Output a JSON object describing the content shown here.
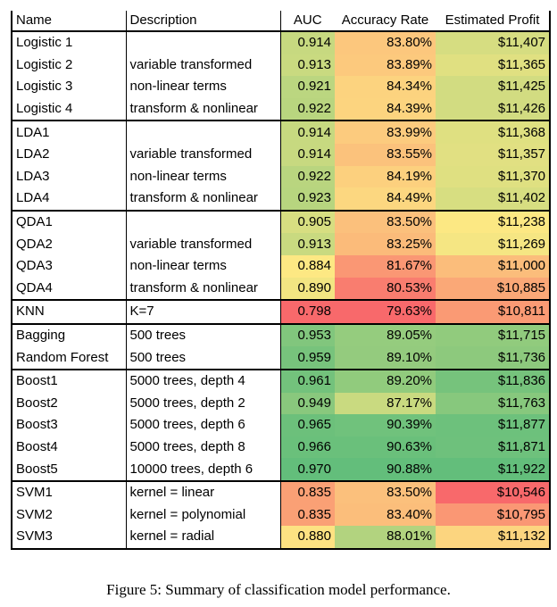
{
  "headers": {
    "name": "Name",
    "description": "Description",
    "auc": "AUC",
    "accuracy": "Accuracy Rate",
    "profit": "Estimated Profit"
  },
  "groups": [
    {
      "rows": [
        {
          "name": "Logistic 1",
          "description": "",
          "auc": "0.914",
          "accuracy": "83.80%",
          "profit": "$11,407"
        },
        {
          "name": "Logistic 2",
          "description": "variable transformed",
          "auc": "0.913",
          "accuracy": "83.89%",
          "profit": "$11,365"
        },
        {
          "name": "Logistic 3",
          "description": "non-linear terms",
          "auc": "0.921",
          "accuracy": "84.34%",
          "profit": "$11,425"
        },
        {
          "name": "Logistic 4",
          "description": "transform & nonlinear",
          "auc": "0.922",
          "accuracy": "84.39%",
          "profit": "$11,426"
        }
      ]
    },
    {
      "rows": [
        {
          "name": "LDA1",
          "description": "",
          "auc": "0.914",
          "accuracy": "83.99%",
          "profit": "$11,368"
        },
        {
          "name": "LDA2",
          "description": "variable transformed",
          "auc": "0.914",
          "accuracy": "83.55%",
          "profit": "$11,357"
        },
        {
          "name": "LDA3",
          "description": "non-linear terms",
          "auc": "0.922",
          "accuracy": "84.19%",
          "profit": "$11,370"
        },
        {
          "name": "LDA4",
          "description": "transform & nonlinear",
          "auc": "0.923",
          "accuracy": "84.49%",
          "profit": "$11,402"
        }
      ]
    },
    {
      "rows": [
        {
          "name": "QDA1",
          "description": "",
          "auc": "0.905",
          "accuracy": "83.50%",
          "profit": "$11,238"
        },
        {
          "name": "QDA2",
          "description": "variable transformed",
          "auc": "0.913",
          "accuracy": "83.25%",
          "profit": "$11,269"
        },
        {
          "name": "QDA3",
          "description": "non-linear terms",
          "auc": "0.884",
          "accuracy": "81.67%",
          "profit": "$11,000"
        },
        {
          "name": "QDA4",
          "description": "transform & nonlinear",
          "auc": "0.890",
          "accuracy": "80.53%",
          "profit": "$10,885"
        }
      ]
    },
    {
      "rows": [
        {
          "name": "KNN",
          "description": "K=7",
          "auc": "0.798",
          "accuracy": "79.63%",
          "profit": "$10,811"
        }
      ]
    },
    {
      "rows": [
        {
          "name": "Bagging",
          "description": "500 trees",
          "auc": "0.953",
          "accuracy": "89.05%",
          "profit": "$11,715"
        },
        {
          "name": "Random Forest",
          "description": "500 trees",
          "auc": "0.959",
          "accuracy": "89.10%",
          "profit": "$11,736"
        }
      ]
    },
    {
      "rows": [
        {
          "name": "Boost1",
          "description": "5000 trees, depth 4",
          "auc": "0.961",
          "accuracy": "89.20%",
          "profit": "$11,836"
        },
        {
          "name": "Boost2",
          "description": "5000 trees, depth 2",
          "auc": "0.949",
          "accuracy": "87.17%",
          "profit": "$11,763"
        },
        {
          "name": "Boost3",
          "description": "5000 trees, depth 6",
          "auc": "0.965",
          "accuracy": "90.39%",
          "profit": "$11,877"
        },
        {
          "name": "Boost4",
          "description": "5000 trees, depth 8",
          "auc": "0.966",
          "accuracy": "90.63%",
          "profit": "$11,871"
        },
        {
          "name": "Boost5",
          "description": "10000 trees, depth 6",
          "auc": "0.970",
          "accuracy": "90.88%",
          "profit": "$11,922"
        }
      ]
    },
    {
      "rows": [
        {
          "name": "SVM1",
          "description": "kernel = linear",
          "auc": "0.835",
          "accuracy": "83.50%",
          "profit": "$10,546"
        },
        {
          "name": "SVM2",
          "description": "kernel = polynomial",
          "auc": "0.835",
          "accuracy": "83.40%",
          "profit": "$10,795"
        },
        {
          "name": "SVM3",
          "description": "kernel = radial",
          "auc": "0.880",
          "accuracy": "88.01%",
          "profit": "$11,132"
        }
      ]
    }
  ],
  "color_scale": {
    "low": "#f8696b",
    "mid": "#fde883",
    "high": "#63be7b"
  },
  "caption": "Figure 5: Summary of classification model performance."
}
